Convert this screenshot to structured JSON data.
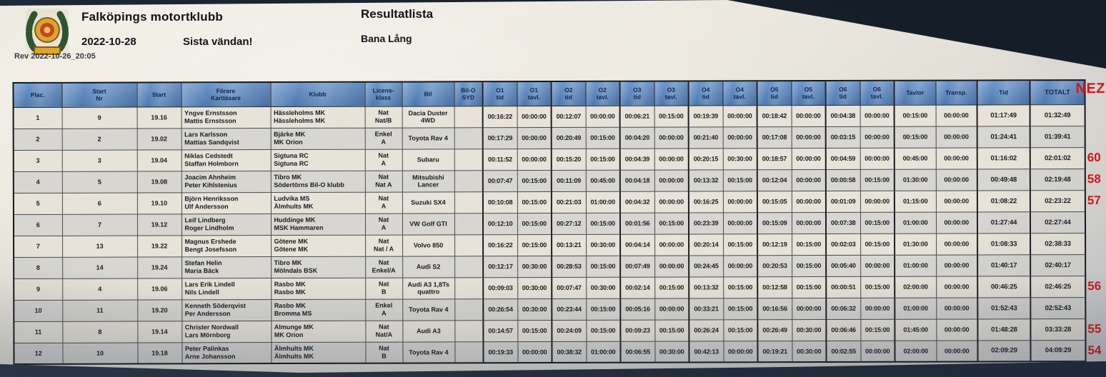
{
  "header": {
    "club": "Falköpings motortklubb",
    "date": "2022-10-28",
    "note": "Sista vändan!",
    "title": "Resultatlista",
    "course": "Bana Lång",
    "rev": "Rev 2022-10-26_20:05"
  },
  "annotation": {
    "label": "NEZ",
    "color": "#e01313"
  },
  "table": {
    "columns": [
      {
        "id": "plac",
        "lines": [
          "Plac."
        ]
      },
      {
        "id": "start-nr",
        "lines": [
          "Start",
          "Nr"
        ]
      },
      {
        "id": "start",
        "lines": [
          "Start"
        ]
      },
      {
        "id": "crew",
        "lines": [
          "Förare",
          "Kartläsare"
        ]
      },
      {
        "id": "club",
        "lines": [
          "Klubb"
        ]
      },
      {
        "id": "license",
        "lines": [
          "Licens-",
          "klass"
        ]
      },
      {
        "id": "car",
        "lines": [
          "Bil"
        ]
      },
      {
        "id": "bilo-syd",
        "lines": [
          "Bil-O",
          "SYD"
        ]
      },
      {
        "id": "o1-tid",
        "lines": [
          "O1",
          "tid"
        ]
      },
      {
        "id": "o1-tavl",
        "lines": [
          "O1",
          "tavl."
        ]
      },
      {
        "id": "o2-tid",
        "lines": [
          "O2",
          "tid"
        ]
      },
      {
        "id": "o2-tavl",
        "lines": [
          "O2",
          "tavl."
        ]
      },
      {
        "id": "o3-tid",
        "lines": [
          "O3",
          "tid"
        ]
      },
      {
        "id": "o3-tavl",
        "lines": [
          "O3",
          "tavl."
        ]
      },
      {
        "id": "o4-tid",
        "lines": [
          "O4",
          "tid"
        ]
      },
      {
        "id": "o4-tavl",
        "lines": [
          "O4",
          "tavl."
        ]
      },
      {
        "id": "o5-tid",
        "lines": [
          "O5",
          "tid"
        ]
      },
      {
        "id": "o5-tavl",
        "lines": [
          "O5",
          "tavl."
        ]
      },
      {
        "id": "o6-tid",
        "lines": [
          "O6",
          "tid"
        ]
      },
      {
        "id": "o6-tavl",
        "lines": [
          "O6",
          "tavl."
        ]
      },
      {
        "id": "tavlor",
        "lines": [
          "Tavlor"
        ]
      },
      {
        "id": "transp",
        "lines": [
          "Transp."
        ]
      },
      {
        "id": "tid",
        "lines": [
          "Tid"
        ]
      },
      {
        "id": "totalt",
        "lines": [
          "TOTALT"
        ]
      }
    ],
    "rows": [
      {
        "plac": "1",
        "start_nr": "9",
        "start": "19.16",
        "crew": [
          "Yngve Ernstsson",
          "Mattis Ernstsson"
        ],
        "club": [
          "Hässleholms MK",
          "Hässleholms MK"
        ],
        "license": [
          "Nat",
          "Nat/B"
        ],
        "car": "Dacia Duster 4WD",
        "bilo_syd": "",
        "times": [
          "00:16:22",
          "00:00:00",
          "00:12:07",
          "00:00:00",
          "00:06:21",
          "00:15:00",
          "00:19:39",
          "00:00:00",
          "00:18:42",
          "00:00:00",
          "00:04:38",
          "00:00:00",
          "00:15:00",
          "00:00:00",
          "01:17:49",
          "01:32:49"
        ],
        "note": ""
      },
      {
        "plac": "2",
        "start_nr": "2",
        "start": "19.02",
        "crew": [
          "Lars Karlsson",
          "Mattias Sandqvist"
        ],
        "club": [
          "Bjärke MK",
          "MK Orion"
        ],
        "license": [
          "Enkel",
          "A"
        ],
        "car": "Toyota Rav 4",
        "bilo_syd": "",
        "times": [
          "00:17:29",
          "00:00:00",
          "00:20:49",
          "00:15:00",
          "00:04:20",
          "00:00:00",
          "00:21:40",
          "00:00:00",
          "00:17:08",
          "00:00:00",
          "00:03:15",
          "00:00:00",
          "00:15:00",
          "00:00:00",
          "01:24:41",
          "01:39:41"
        ],
        "note": ""
      },
      {
        "plac": "3",
        "start_nr": "3",
        "start": "19.04",
        "crew": [
          "Niklas Cedstedt",
          "Staffan Holmborn"
        ],
        "club": [
          "Sigtuna RC",
          "Sigtuna RC"
        ],
        "license": [
          "Nat",
          "A"
        ],
        "car": "Subaru",
        "bilo_syd": "",
        "times": [
          "00:11:52",
          "00:00:00",
          "00:15:20",
          "00:15:00",
          "00:04:39",
          "00:00:00",
          "00:20:15",
          "00:30:00",
          "00:18:57",
          "00:00:00",
          "00:04:59",
          "00:00:00",
          "00:45:00",
          "00:00:00",
          "01:16:02",
          "02:01:02"
        ],
        "note": "60"
      },
      {
        "plac": "4",
        "start_nr": "5",
        "start": "19.08",
        "crew": [
          "Joacim Ahnheim",
          "Peter Kihlstenius"
        ],
        "club": [
          "Tibro MK",
          "Södertörns Bil-O klubb"
        ],
        "license": [
          "Nat",
          "Nat A"
        ],
        "car": "Mitsubishi Lancer",
        "bilo_syd": "",
        "times": [
          "00:07:47",
          "00:15:00",
          "00:11:09",
          "00:45:00",
          "00:04:18",
          "00:00:00",
          "00:13:32",
          "00:15:00",
          "00:12:04",
          "00:00:00",
          "00:00:58",
          "00:15:00",
          "01:30:00",
          "00:00:00",
          "00:49:48",
          "02:19:48"
        ],
        "note": "58"
      },
      {
        "plac": "5",
        "start_nr": "6",
        "start": "19.10",
        "crew": [
          "Björn Henriksson",
          "Ulf Andersson"
        ],
        "club": [
          "Ludvika MS",
          "Älmhults MK"
        ],
        "license": [
          "Nat",
          "A"
        ],
        "car": "Suzuki SX4",
        "bilo_syd": "",
        "times": [
          "00:10:08",
          "00:15:00",
          "00:21:03",
          "01:00:00",
          "00:04:32",
          "00:00:00",
          "00:16:25",
          "00:00:00",
          "00:15:05",
          "00:00:00",
          "00:01:09",
          "00:00:00",
          "01:15:00",
          "00:00:00",
          "01:08:22",
          "02:23:22"
        ],
        "note": "57"
      },
      {
        "plac": "6",
        "start_nr": "7",
        "start": "19.12",
        "crew": [
          "Leif Lindberg",
          "Roger Lindholm"
        ],
        "club": [
          "Huddinge MK",
          "MSK Hammaren"
        ],
        "license": [
          "Nat",
          "A"
        ],
        "car": "VW Golf GTI",
        "bilo_syd": "",
        "times": [
          "00:12:10",
          "00:15:00",
          "00:27:12",
          "00:15:00",
          "00:01:56",
          "00:15:00",
          "00:23:39",
          "00:00:00",
          "00:15:09",
          "00:00:00",
          "00:07:38",
          "00:15:00",
          "01:00:00",
          "00:00:00",
          "01:27:44",
          "02:27:44"
        ],
        "note": ""
      },
      {
        "plac": "7",
        "start_nr": "13",
        "start": "19.22",
        "crew": [
          "Magnus Ershede",
          "Bengt Josefsson"
        ],
        "club": [
          "Götene MK",
          "Götene MK"
        ],
        "license": [
          "Nat",
          "Nat / A"
        ],
        "car": "Volvo 850",
        "bilo_syd": "",
        "times": [
          "00:16:22",
          "00:15:00",
          "00:13:21",
          "00:30:00",
          "00:04:14",
          "00:00:00",
          "00:20:14",
          "00:15:00",
          "00:12:19",
          "00:15:00",
          "00:02:03",
          "00:15:00",
          "01:30:00",
          "00:00:00",
          "01:08:33",
          "02:38:33"
        ],
        "note": ""
      },
      {
        "plac": "8",
        "start_nr": "14",
        "start": "19.24",
        "crew": [
          "Stefan Helin",
          "Maria Bäck"
        ],
        "club": [
          "Tibro MK",
          "Mölndals BSK"
        ],
        "license": [
          "Nat",
          "Enkel/A"
        ],
        "car": "Audi S2",
        "bilo_syd": "",
        "times": [
          "00:12:17",
          "00:30:00",
          "00:28:53",
          "00:15:00",
          "00:07:49",
          "00:00:00",
          "00:24:45",
          "00:00:00",
          "00:20:53",
          "00:15:00",
          "00:05:40",
          "00:00:00",
          "01:00:00",
          "00:00:00",
          "01:40:17",
          "02:40:17"
        ],
        "note": ""
      },
      {
        "plac": "9",
        "start_nr": "4",
        "start": "19.06",
        "crew": [
          "Lars Erik Lindell",
          "Nils Lindell"
        ],
        "club": [
          "Rasbo MK",
          "Rasbo MK"
        ],
        "license": [
          "Nat",
          "B"
        ],
        "car": "Audi A3 1,8Ts quattro",
        "bilo_syd": "",
        "times": [
          "00:09:03",
          "00:30:00",
          "00:07:47",
          "00:30:00",
          "00:02:14",
          "00:15:00",
          "00:13:32",
          "00:15:00",
          "00:12:58",
          "00:15:00",
          "00:00:51",
          "00:15:00",
          "02:00:00",
          "00:00:00",
          "00:46:25",
          "02:46:25"
        ],
        "note": "56"
      },
      {
        "plac": "10",
        "start_nr": "11",
        "start": "19.20",
        "crew": [
          "Kenneth Söderqvist",
          "Per Andersson"
        ],
        "club": [
          "Rasbo MK",
          "Bromma MS"
        ],
        "license": [
          "Enkel",
          "A"
        ],
        "car": "Toyota Rav 4",
        "bilo_syd": "",
        "times": [
          "00:26:54",
          "00:30:00",
          "00:23:44",
          "00:15:00",
          "00:05:16",
          "00:00:00",
          "00:33:21",
          "00:15:00",
          "00:16:56",
          "00:00:00",
          "00:06:32",
          "00:00:00",
          "01:00:00",
          "00:00:00",
          "01:52:43",
          "02:52:43"
        ],
        "note": ""
      },
      {
        "plac": "11",
        "start_nr": "8",
        "start": "19.14",
        "crew": [
          "Christer Nordwall",
          "Lars Mörnborg"
        ],
        "club": [
          "Almunge MK",
          "MK Orion"
        ],
        "license": [
          "Nat",
          "Nat/A"
        ],
        "car": "Audi A3",
        "bilo_syd": "",
        "times": [
          "00:14:57",
          "00:15:00",
          "00:24:09",
          "00:15:00",
          "00:09:23",
          "00:15:00",
          "00:26:24",
          "00:15:00",
          "00:26:49",
          "00:30:00",
          "00:06:46",
          "00:15:00",
          "01:45:00",
          "00:00:00",
          "01:48:28",
          "03:33:28"
        ],
        "note": "55"
      },
      {
        "plac": "12",
        "start_nr": "10",
        "start": "19.18",
        "crew": [
          "Peter Palinkas",
          "Arne Johansson"
        ],
        "club": [
          "Älmhults MK",
          "Älmhults MK"
        ],
        "license": [
          "Nat",
          "B"
        ],
        "car": "Toyota Rav 4",
        "bilo_syd": "",
        "times": [
          "00:19:33",
          "00:00:00",
          "00:38:32",
          "01:00:00",
          "00:06:55",
          "00:30:00",
          "00:42:13",
          "00:00:00",
          "00:19:21",
          "00:30:00",
          "00:02:55",
          "00:00:00",
          "02:00:00",
          "00:00:00",
          "02:09:29",
          "04:09:29"
        ],
        "note": "54"
      }
    ]
  }
}
